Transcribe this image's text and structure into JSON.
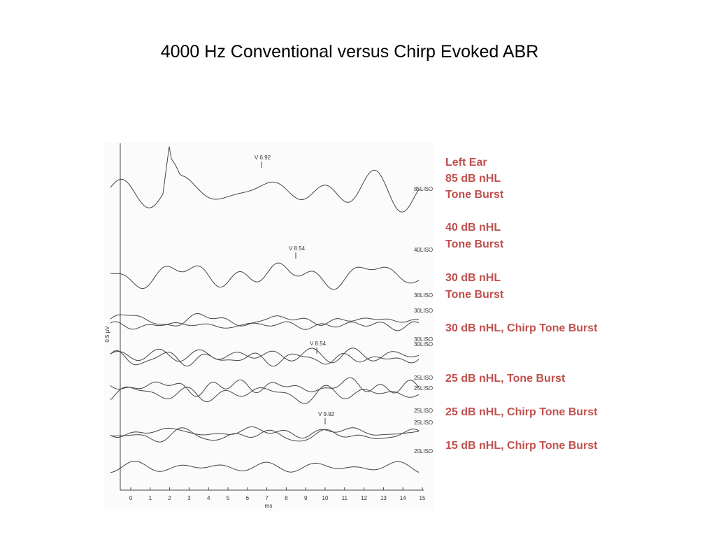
{
  "title": "4000 Hz Conventional versus Chirp Evoked ABR",
  "figure": {
    "y_label": "0.5 µV",
    "x_label": "ms",
    "x_ticks": [
      "0",
      "1",
      "2",
      "3",
      "4",
      "5",
      "6",
      "7",
      "8",
      "9",
      "10",
      "11",
      "12",
      "13",
      "14",
      "15"
    ],
    "trace_labels": [
      "85LISO",
      "40LISO",
      "30LISO",
      "30LISO",
      "30LISO",
      "30LISO",
      "25LISO",
      "25LISO",
      "25LISO",
      "25LISO",
      "20LISO"
    ],
    "peak_labels": [
      "V 6.92",
      "V 8.54",
      "V 8.54",
      "V 9.92"
    ]
  },
  "notes": [
    "Left Ear",
    "85 dB nHL",
    "Tone Burst",
    "40 dB nHL",
    "Tone Burst",
    "30 dB nHL",
    "Tone Burst",
    "30 dB nHL, Chirp Tone Burst",
    "25 dB nHL, Tone Burst",
    "25 dB nHL, Chirp Tone Burst",
    "15 dB nHL, Chirp Tone Burst"
  ]
}
